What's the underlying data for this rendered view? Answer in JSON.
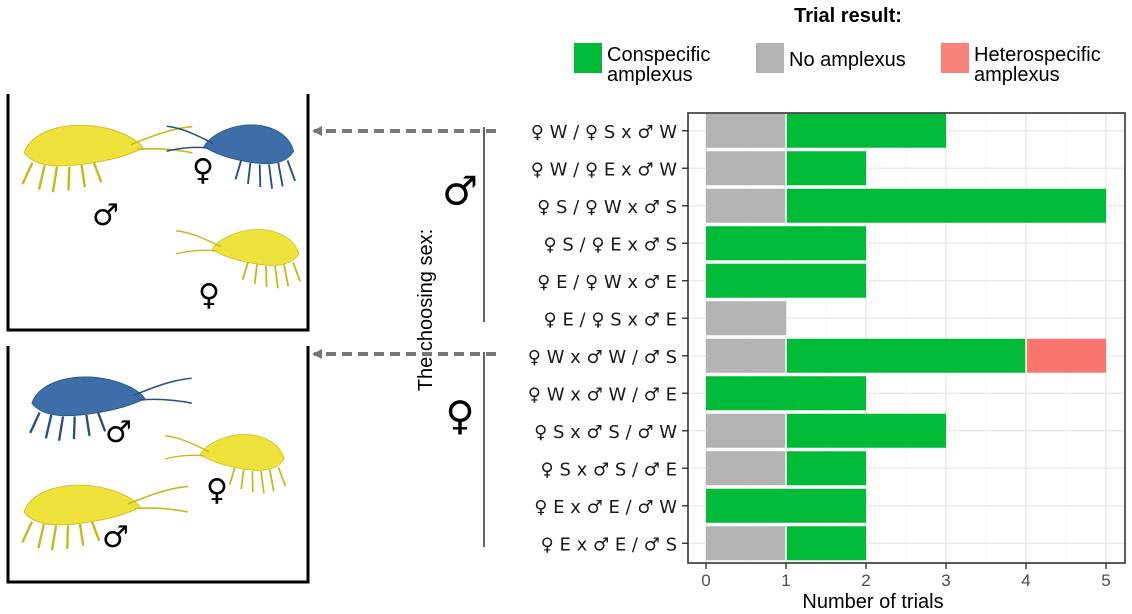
{
  "chart_data": {
    "type": "bar",
    "stacked": true,
    "orientation": "horizontal",
    "categories": [
      "♀ W / ♀ S x ♂ W",
      "♀ W / ♀ E x ♂ W",
      "♀ S / ♀ W x ♂ S",
      "♀ S / ♀ E x ♂ S",
      "♀ E / ♀ W x ♂ E",
      "♀ E / ♀ S x ♂ E",
      "♀ W x ♂ W / ♂ S",
      "♀ W x ♂ W / ♂ E",
      "♀ S x ♂ S / ♂ W",
      "♀ S x ♂ S / ♂ E",
      "♀ E x ♂ E / ♂ W",
      "♀ E x ♂ E / ♂ S"
    ],
    "series": [
      {
        "name": "No amplexus",
        "color": "#b3b3b3",
        "values": [
          1,
          1,
          1,
          0,
          0,
          1,
          1,
          0,
          1,
          1,
          0,
          1
        ]
      },
      {
        "name": "Conspecific amplexus",
        "color": "#00bb38",
        "values": [
          2,
          1,
          4,
          2,
          2,
          0,
          3,
          2,
          2,
          1,
          2,
          1
        ]
      },
      {
        "name": "Heterospecific amplexus",
        "color": "#f8766d",
        "values": [
          0,
          0,
          0,
          0,
          0,
          0,
          1,
          0,
          0,
          0,
          0,
          0
        ]
      }
    ],
    "xlabel": "Number of trials",
    "xlim": [
      0,
      5.05
    ],
    "xticks": [
      0,
      1,
      2,
      3,
      4,
      5
    ],
    "grid": true,
    "legend": {
      "title": "Trial result:",
      "placement": "top",
      "items": [
        {
          "label_line1": "Conspecific",
          "label_line2": "amplexus",
          "color": "#00bb38"
        },
        {
          "label_line1": "No amplexus",
          "label_line2": "",
          "color": "#b3b3b3"
        },
        {
          "label_line1": "Heterospecific",
          "label_line2": "amplexus",
          "color": "#f8766d"
        }
      ]
    },
    "group_axis": {
      "title": "The choosing sex:",
      "groups": [
        {
          "symbol": "♂",
          "rows": [
            0,
            5
          ]
        },
        {
          "symbol": "♀",
          "rows": [
            6,
            11
          ]
        }
      ]
    }
  },
  "illustration": {
    "top_panel": {
      "female_blue_symbol": "♀",
      "male_yellow_symbol": "♂",
      "female_yellow_symbol": "♀",
      "colors": {
        "yellow": "#efe23a",
        "blue": "#3d6ea8"
      }
    },
    "bottom_panel": {
      "male_blue_symbol": "♂",
      "female_yellow_symbol": "♀",
      "male_yellow_symbol": "♂",
      "colors": {
        "yellow": "#efe23a",
        "blue": "#3d6ea8"
      }
    }
  }
}
